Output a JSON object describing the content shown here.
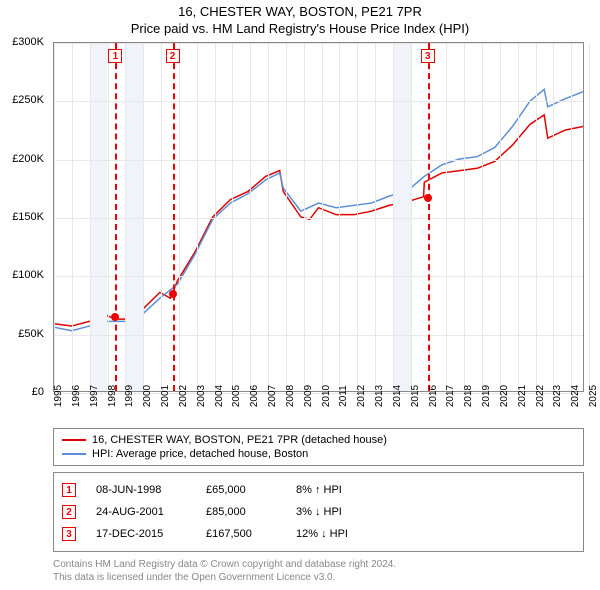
{
  "title": "16, CHESTER WAY, BOSTON, PE21 7PR",
  "subtitle": "Price paid vs. HM Land Registry's House Price Index (HPI)",
  "chart": {
    "type": "line",
    "ylim": [
      0,
      300000
    ],
    "ytick_step": 50000,
    "ytick_labels": [
      "£0",
      "£50K",
      "£100K",
      "£150K",
      "£200K",
      "£250K",
      "£300K"
    ],
    "xlim": [
      1995,
      2025
    ],
    "xticks": [
      1995,
      1996,
      1997,
      1998,
      1999,
      2000,
      2001,
      2002,
      2003,
      2004,
      2005,
      2006,
      2007,
      2008,
      2009,
      2010,
      2011,
      2012,
      2013,
      2014,
      2015,
      2016,
      2017,
      2018,
      2019,
      2020,
      2021,
      2022,
      2023,
      2024,
      2025
    ],
    "shaded_years": [
      [
        1997,
        1998
      ],
      [
        1999,
        2000
      ],
      [
        2014,
        2015
      ]
    ],
    "background_color": "#ffffff",
    "grid_color": "#e8e8e8",
    "shade_color": "#f0f4fa",
    "series": [
      {
        "name": "property",
        "color": "#e00000",
        "width": 1.5,
        "points": [
          [
            1995,
            58000
          ],
          [
            1996,
            56000
          ],
          [
            1997,
            60000
          ],
          [
            1998,
            65000
          ],
          [
            1998.5,
            62000
          ],
          [
            1999,
            62000
          ],
          [
            2000,
            70000
          ],
          [
            2001,
            85000
          ],
          [
            2001.6,
            80000
          ],
          [
            2002,
            95000
          ],
          [
            2003,
            120000
          ],
          [
            2004,
            150000
          ],
          [
            2005,
            165000
          ],
          [
            2006,
            172000
          ],
          [
            2007,
            185000
          ],
          [
            2007.8,
            190000
          ],
          [
            2008,
            172000
          ],
          [
            2009,
            150000
          ],
          [
            2009.5,
            148000
          ],
          [
            2010,
            158000
          ],
          [
            2011,
            152000
          ],
          [
            2012,
            152000
          ],
          [
            2013,
            155000
          ],
          [
            2014,
            160000
          ],
          [
            2015,
            163000
          ],
          [
            2015.96,
            167500
          ],
          [
            2016,
            180000
          ],
          [
            2017,
            188000
          ],
          [
            2018,
            190000
          ],
          [
            2019,
            192000
          ],
          [
            2020,
            198000
          ],
          [
            2021,
            212000
          ],
          [
            2022,
            230000
          ],
          [
            2022.8,
            238000
          ],
          [
            2023,
            218000
          ],
          [
            2024,
            225000
          ],
          [
            2025,
            228000
          ]
        ]
      },
      {
        "name": "hpi",
        "color": "#5b8fd6",
        "width": 1.5,
        "points": [
          [
            1995,
            55000
          ],
          [
            1996,
            52000
          ],
          [
            1997,
            56000
          ],
          [
            1998,
            60000
          ],
          [
            1999,
            60000
          ],
          [
            2000,
            66000
          ],
          [
            2001,
            80000
          ],
          [
            2002,
            92000
          ],
          [
            2003,
            118000
          ],
          [
            2004,
            148000
          ],
          [
            2005,
            162000
          ],
          [
            2006,
            170000
          ],
          [
            2007,
            182000
          ],
          [
            2007.8,
            188000
          ],
          [
            2008,
            175000
          ],
          [
            2009,
            155000
          ],
          [
            2010,
            162000
          ],
          [
            2011,
            158000
          ],
          [
            2012,
            160000
          ],
          [
            2013,
            162000
          ],
          [
            2014,
            168000
          ],
          [
            2015,
            172000
          ],
          [
            2016,
            185000
          ],
          [
            2017,
            195000
          ],
          [
            2018,
            200000
          ],
          [
            2019,
            202000
          ],
          [
            2020,
            210000
          ],
          [
            2021,
            228000
          ],
          [
            2022,
            250000
          ],
          [
            2022.8,
            260000
          ],
          [
            2023,
            245000
          ],
          [
            2024,
            252000
          ],
          [
            2025,
            258000
          ]
        ]
      }
    ],
    "markers": [
      {
        "n": "1",
        "x": 1998.44,
        "y": 65000
      },
      {
        "n": "2",
        "x": 2001.65,
        "y": 85000
      },
      {
        "n": "3",
        "x": 2015.96,
        "y": 167500
      }
    ]
  },
  "legend": [
    {
      "color": "#e00000",
      "label": "16, CHESTER WAY, BOSTON, PE21 7PR (detached house)"
    },
    {
      "color": "#5b8fd6",
      "label": "HPI: Average price, detached house, Boston"
    }
  ],
  "sales": [
    {
      "n": "1",
      "date": "08-JUN-1998",
      "price": "£65,000",
      "hpi": "8% ↑ HPI"
    },
    {
      "n": "2",
      "date": "24-AUG-2001",
      "price": "£85,000",
      "hpi": "3% ↓ HPI"
    },
    {
      "n": "3",
      "date": "17-DEC-2015",
      "price": "£167,500",
      "hpi": "12% ↓ HPI"
    }
  ],
  "footer": [
    "Contains HM Land Registry data © Crown copyright and database right 2024.",
    "This data is licensed under the Open Government Licence v3.0."
  ]
}
